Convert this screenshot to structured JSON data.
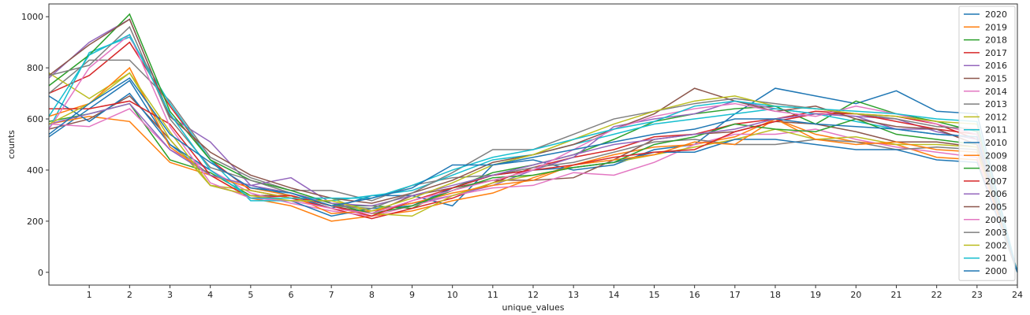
{
  "chart_data": {
    "type": "line",
    "title": "",
    "xlabel": "unique_values",
    "ylabel": "counts",
    "xlim": [
      0,
      24
    ],
    "ylim": [
      -50,
      1050
    ],
    "xticks": [
      1,
      2,
      3,
      4,
      5,
      6,
      7,
      8,
      9,
      10,
      11,
      12,
      13,
      14,
      15,
      16,
      17,
      18,
      19,
      20,
      21,
      22,
      23,
      24
    ],
    "yticks": [
      0,
      200,
      400,
      600,
      800,
      1000
    ],
    "legend_position": "top-right",
    "grid": false,
    "series": [
      {
        "name": "2020",
        "color": "#1f77b4",
        "values": [
          530,
          640,
          750,
          500,
          380,
          340,
          300,
          250,
          300,
          300,
          260,
          420,
          440,
          400,
          420,
          480,
          500,
          620,
          720,
          690,
          660,
          710,
          630,
          620,
          0
        ]
      },
      {
        "name": "2019",
        "color": "#ff7f0e",
        "values": [
          580,
          610,
          590,
          430,
          380,
          290,
          260,
          200,
          220,
          240,
          280,
          310,
          370,
          420,
          460,
          490,
          500,
          530,
          600,
          540,
          510,
          500,
          450,
          440,
          0
        ]
      },
      {
        "name": "2018",
        "color": "#2ca02c",
        "values": [
          590,
          620,
          660,
          440,
          390,
          300,
          300,
          260,
          260,
          250,
          330,
          390,
          420,
          460,
          520,
          590,
          620,
          640,
          650,
          580,
          670,
          620,
          590,
          550,
          0
        ]
      },
      {
        "name": "2017",
        "color": "#d62728",
        "values": [
          700,
          770,
          900,
          650,
          440,
          320,
          290,
          250,
          210,
          250,
          290,
          350,
          410,
          450,
          480,
          530,
          540,
          580,
          600,
          630,
          620,
          610,
          580,
          520,
          0
        ]
      },
      {
        "name": "2016",
        "color": "#9467bd",
        "values": [
          760,
          900,
          990,
          610,
          510,
          340,
          310,
          270,
          240,
          270,
          300,
          340,
          400,
          450,
          570,
          600,
          620,
          670,
          640,
          620,
          610,
          600,
          550,
          520,
          0
        ]
      },
      {
        "name": "2015",
        "color": "#8c564b",
        "values": [
          560,
          600,
          690,
          520,
          340,
          300,
          300,
          260,
          230,
          300,
          330,
          360,
          360,
          370,
          440,
          520,
          540,
          550,
          590,
          580,
          550,
          510,
          510,
          490,
          0
        ]
      },
      {
        "name": "2014",
        "color": "#e377c2",
        "values": [
          580,
          570,
          640,
          480,
          400,
          310,
          270,
          240,
          220,
          260,
          300,
          330,
          340,
          390,
          380,
          430,
          500,
          540,
          540,
          560,
          520,
          490,
          470,
          450,
          0
        ]
      },
      {
        "name": "2013",
        "color": "#7f7f7f",
        "values": [
          700,
          830,
          830,
          670,
          450,
          370,
          320,
          320,
          280,
          340,
          370,
          380,
          410,
          430,
          470,
          510,
          520,
          500,
          500,
          520,
          510,
          480,
          490,
          480,
          0
        ]
      },
      {
        "name": "2012",
        "color": "#bcbd22",
        "values": [
          780,
          680,
          780,
          520,
          340,
          320,
          290,
          290,
          230,
          220,
          300,
          350,
          380,
          410,
          430,
          460,
          490,
          520,
          560,
          520,
          530,
          500,
          500,
          490,
          0
        ]
      },
      {
        "name": "2011",
        "color": "#17becf",
        "values": [
          560,
          860,
          920,
          660,
          440,
          280,
          280,
          280,
          300,
          320,
          380,
          440,
          460,
          500,
          540,
          580,
          600,
          620,
          640,
          620,
          590,
          560,
          540,
          530,
          0
        ]
      },
      {
        "name": "2010",
        "color": "#1f77b4",
        "values": [
          690,
          590,
          700,
          500,
          400,
          290,
          280,
          220,
          250,
          260,
          330,
          380,
          400,
          410,
          430,
          470,
          470,
          520,
          520,
          500,
          480,
          480,
          440,
          430,
          0
        ]
      },
      {
        "name": "2009",
        "color": "#ff7f0e",
        "values": [
          610,
          660,
          800,
          490,
          380,
          330,
          300,
          230,
          240,
          270,
          310,
          340,
          360,
          420,
          440,
          460,
          510,
          500,
          600,
          520,
          500,
          510,
          480,
          470,
          0
        ]
      },
      {
        "name": "2008",
        "color": "#2ca02c",
        "values": [
          730,
          850,
          1010,
          630,
          440,
          360,
          320,
          270,
          230,
          260,
          320,
          370,
          380,
          410,
          430,
          500,
          530,
          580,
          560,
          550,
          600,
          540,
          520,
          500,
          0
        ]
      },
      {
        "name": "2007",
        "color": "#d62728",
        "values": [
          640,
          640,
          670,
          580,
          380,
          290,
          300,
          260,
          220,
          280,
          330,
          380,
          400,
          420,
          450,
          470,
          480,
          550,
          590,
          620,
          620,
          590,
          560,
          540,
          0
        ]
      },
      {
        "name": "2006",
        "color": "#9467bd",
        "values": [
          580,
          620,
          660,
          480,
          380,
          340,
          370,
          270,
          260,
          300,
          340,
          380,
          420,
          460,
          500,
          520,
          540,
          560,
          600,
          620,
          610,
          560,
          560,
          500,
          0
        ]
      },
      {
        "name": "2005",
        "color": "#8c564b",
        "values": [
          770,
          890,
          990,
          610,
          470,
          380,
          330,
          290,
          270,
          310,
          360,
          430,
          460,
          500,
          560,
          620,
          720,
          670,
          630,
          650,
          600,
          570,
          560,
          500,
          0
        ]
      },
      {
        "name": "2004",
        "color": "#e377c2",
        "values": [
          560,
          800,
          930,
          570,
          350,
          290,
          280,
          250,
          230,
          280,
          320,
          360,
          400,
          480,
          560,
          610,
          640,
          660,
          630,
          610,
          650,
          620,
          580,
          540,
          0
        ]
      },
      {
        "name": "2003",
        "color": "#7f7f7f",
        "values": [
          770,
          810,
          960,
          600,
          410,
          360,
          310,
          260,
          250,
          310,
          390,
          480,
          480,
          540,
          600,
          630,
          660,
          680,
          660,
          640,
          620,
          600,
          570,
          560,
          0
        ]
      },
      {
        "name": "2002",
        "color": "#bcbd22",
        "values": [
          580,
          660,
          780,
          550,
          340,
          300,
          280,
          280,
          240,
          290,
          350,
          420,
          460,
          520,
          580,
          630,
          670,
          690,
          650,
          640,
          620,
          610,
          590,
          580,
          0
        ]
      },
      {
        "name": "2001",
        "color": "#17becf",
        "values": [
          610,
          850,
          930,
          620,
          400,
          290,
          290,
          290,
          290,
          340,
          400,
          450,
          480,
          520,
          560,
          590,
          650,
          670,
          650,
          640,
          630,
          620,
          600,
          590,
          0
        ]
      },
      {
        "name": "2000",
        "color": "#1f77b4",
        "values": [
          540,
          660,
          760,
          540,
          430,
          330,
          310,
          260,
          290,
          330,
          420,
          420,
          450,
          480,
          510,
          540,
          560,
          600,
          600,
          580,
          570,
          560,
          540,
          530,
          0
        ]
      }
    ]
  }
}
